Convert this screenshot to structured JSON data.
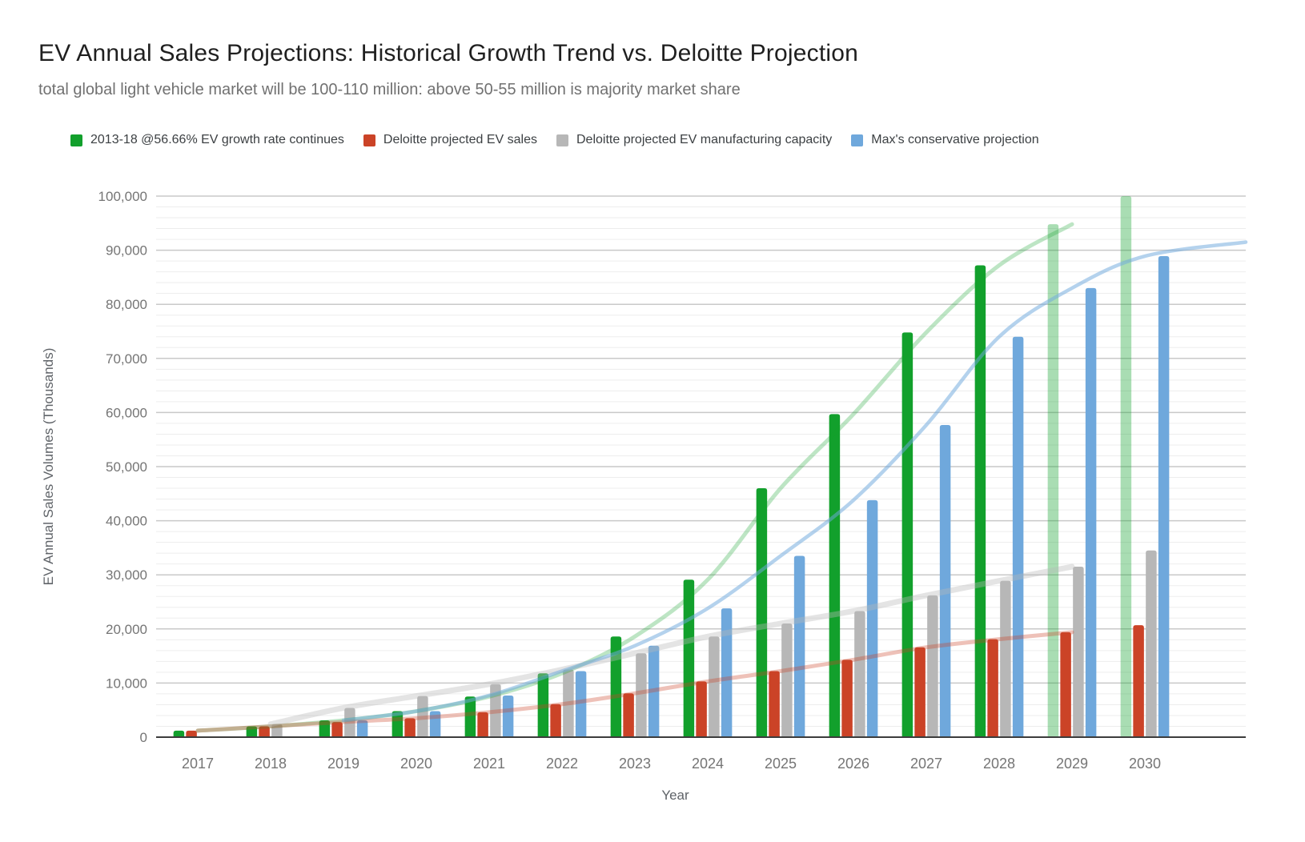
{
  "title": "EV Annual Sales Projections: Historical Growth Trend vs. Deloitte Projection",
  "subtitle": "total global light vehicle market will be 100-110 million: above 50-55 million is majority market share",
  "legend": [
    {
      "label": "2013-18 @56.66% EV growth rate continues",
      "color": "#12a02c"
    },
    {
      "label": "Deloitte projected EV sales",
      "color": "#cb4327"
    },
    {
      "label": "Deloitte projected EV manufacturing capacity",
      "color": "#b7b7b7"
    },
    {
      "label": "Max's conservative projection",
      "color": "#6fa8dc"
    }
  ],
  "chart_data": {
    "type": "bar",
    "subtype": "grouped columns with smoothed trend lines",
    "title": "EV Annual Sales Projections: Historical Growth Trend vs. Deloitte Projection",
    "subtitle": "total global light vehicle market will be 100-110 million: above 50-55 million is majority market share",
    "xlabel": "Year",
    "ylabel": "EV Annual Sales Volumes (Thousands)",
    "ylim": [
      0,
      100000
    ],
    "y_major_step": 10000,
    "y_minor_step": 2000,
    "grid": "horizontal major and minor gridlines",
    "legend_position": "top",
    "y_ticks": [
      "0",
      "10,000",
      "20,000",
      "30,000",
      "40,000",
      "50,000",
      "60,000",
      "70,000",
      "80,000",
      "90,000",
      "100,000"
    ],
    "categories": [
      "2017",
      "2018",
      "2019",
      "2020",
      "2021",
      "2022",
      "2023",
      "2024",
      "2025",
      "2026",
      "2027",
      "2028",
      "2029",
      "2030"
    ],
    "series": [
      {
        "id": "growth-trend",
        "name": "2013-18 @56.66% EV growth rate continues",
        "color": "#12a02c",
        "values": [
          1200,
          2000,
          3100,
          4800,
          7500,
          11800,
          18600,
          29100,
          46000,
          59700,
          74800,
          87200,
          94800,
          100000
        ],
        "muted_indices": [
          12,
          13
        ],
        "muted_opacity": 0.36,
        "line": {
          "color": "rgba(18,160,44,0.28)",
          "width": 5,
          "end_index": 12
        }
      },
      {
        "id": "deloitte-sales",
        "name": "Deloitte projected EV sales",
        "color": "#cb4327",
        "values": [
          1200,
          2000,
          2800,
          3500,
          4600,
          6100,
          8100,
          10300,
          12200,
          14300,
          16600,
          18100,
          19400,
          20700
        ],
        "muted_indices": [],
        "muted_opacity": 1,
        "line": {
          "color": "rgba(203,67,39,0.33)",
          "width": 5,
          "end_index": 12
        }
      },
      {
        "id": "deloitte-capacity",
        "name": "Deloitte projected EV manufacturing capacity",
        "color": "#b7b7b7",
        "values": [
          null,
          2400,
          5400,
          7600,
          9800,
          12500,
          15500,
          18600,
          21000,
          23300,
          26200,
          28900,
          31500,
          34500
        ],
        "muted_indices": [],
        "muted_opacity": 1,
        "line": {
          "color": "rgba(183,183,183,0.38)",
          "width": 7,
          "end_index": 12
        }
      },
      {
        "id": "max-conservative",
        "name": "Max's conservative projection",
        "color": "#6fa8dc",
        "values": [
          null,
          null,
          3100,
          4800,
          7700,
          12200,
          16900,
          23800,
          33500,
          43800,
          57700,
          74000,
          83000,
          88900
        ],
        "muted_indices": [],
        "muted_opacity": 1,
        "line": {
          "color": "rgba(111,168,220,0.52)",
          "width": 4.5,
          "end_index": 13,
          "extend_to_edge_value": 91500
        }
      }
    ]
  },
  "axis_text": {
    "x_title": "Year",
    "y_title": "EV Annual Sales Volumes (Thousands)"
  },
  "colors": {
    "background": "#ffffff",
    "title_text": "#1f1f1f",
    "subtitle_text": "#717171",
    "tick_text": "#757575",
    "axis_title_text": "#5f6368",
    "minor_grid": "#ededed",
    "major_grid": "#c9c9c9",
    "baseline": "#3c3c3c"
  }
}
